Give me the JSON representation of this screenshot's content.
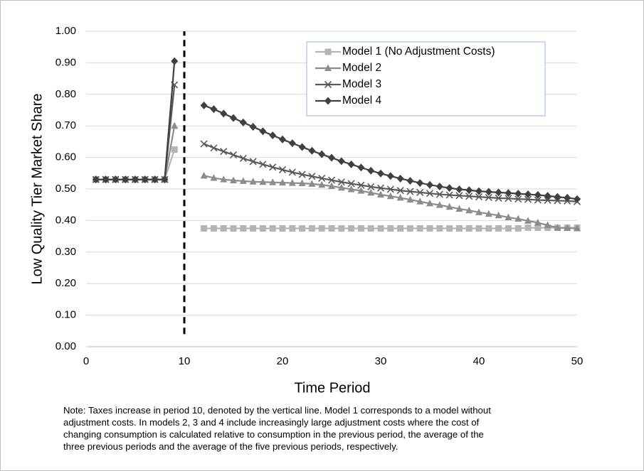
{
  "chart_data": {
    "type": "line",
    "xlabel": "Time Period",
    "ylabel": "Low Quality Tier  Market Share",
    "x": [
      1,
      2,
      3,
      4,
      5,
      6,
      7,
      8,
      9,
      10,
      11,
      12,
      13,
      14,
      15,
      16,
      17,
      18,
      19,
      20,
      21,
      22,
      23,
      24,
      25,
      26,
      27,
      28,
      29,
      30,
      31,
      32,
      33,
      34,
      35,
      36,
      37,
      38,
      39,
      40,
      41,
      42,
      43,
      44,
      45,
      46,
      47,
      48,
      49,
      50
    ],
    "series": [
      {
        "name": "Model 1 (No Adjustment Costs)",
        "color": "#b4b4b4",
        "marker": "square",
        "values": [
          0.53,
          0.53,
          0.53,
          0.53,
          0.53,
          0.53,
          0.53,
          0.53,
          0.625,
          null,
          null,
          0.375,
          0.375,
          0.375,
          0.375,
          0.375,
          0.375,
          0.375,
          0.375,
          0.375,
          0.375,
          0.375,
          0.375,
          0.375,
          0.375,
          0.375,
          0.375,
          0.375,
          0.375,
          0.375,
          0.375,
          0.375,
          0.375,
          0.375,
          0.375,
          0.375,
          0.375,
          0.375,
          0.375,
          0.375,
          0.375,
          0.375,
          0.375,
          0.375,
          0.377,
          0.377,
          0.377,
          0.377,
          0.377,
          0.377
        ]
      },
      {
        "name": "Model 2",
        "color": "#8c8c8c",
        "marker": "triangle",
        "values": [
          0.53,
          0.53,
          0.53,
          0.53,
          0.53,
          0.53,
          0.53,
          0.53,
          0.7,
          null,
          null,
          0.542,
          0.535,
          0.53,
          0.527,
          0.525,
          0.523,
          0.522,
          0.521,
          0.52,
          0.519,
          0.518,
          0.516,
          0.513,
          0.509,
          0.504,
          0.499,
          0.494,
          0.488,
          0.482,
          0.477,
          0.472,
          0.466,
          0.46,
          0.454,
          0.449,
          0.443,
          0.437,
          0.432,
          0.426,
          0.421,
          0.416,
          0.41,
          0.405,
          0.399,
          0.393,
          0.385,
          0.377,
          0.376,
          0.375
        ]
      },
      {
        "name": "Model 3",
        "color": "#595959",
        "marker": "x",
        "values": [
          0.53,
          0.53,
          0.53,
          0.53,
          0.53,
          0.53,
          0.53,
          0.53,
          0.83,
          null,
          null,
          0.643,
          0.63,
          0.619,
          0.608,
          0.597,
          0.587,
          0.578,
          0.569,
          0.561,
          0.553,
          0.546,
          0.54,
          0.534,
          0.528,
          0.522,
          0.517,
          0.512,
          0.507,
          0.503,
          0.499,
          0.495,
          0.492,
          0.489,
          0.486,
          0.483,
          0.481,
          0.479,
          0.477,
          0.475,
          0.473,
          0.471,
          0.47,
          0.468,
          0.467,
          0.465,
          0.464,
          0.463,
          0.462,
          0.46
        ]
      },
      {
        "name": "Model 4",
        "color": "#404040",
        "marker": "diamond",
        "values": [
          0.53,
          0.53,
          0.53,
          0.53,
          0.53,
          0.53,
          0.53,
          0.53,
          0.905,
          null,
          null,
          0.765,
          0.753,
          0.739,
          0.725,
          0.711,
          0.697,
          0.683,
          0.67,
          0.657,
          0.645,
          0.633,
          0.621,
          0.61,
          0.599,
          0.588,
          0.578,
          0.568,
          0.558,
          0.549,
          0.541,
          0.533,
          0.526,
          0.519,
          0.513,
          0.508,
          0.503,
          0.499,
          0.496,
          0.493,
          0.491,
          0.489,
          0.487,
          0.485,
          0.483,
          0.481,
          0.478,
          0.475,
          0.472,
          0.468
        ]
      }
    ],
    "xlim": [
      0,
      50
    ],
    "xticks": [
      0,
      10,
      20,
      30,
      40,
      50
    ],
    "ylim": [
      0,
      1
    ],
    "yticks": [
      {
        "value": 0,
        "label": "0.00"
      },
      {
        "value": 0.1,
        "label": "0.10"
      },
      {
        "value": 0.2,
        "label": "0.20"
      },
      {
        "value": 0.3,
        "label": "0.30"
      },
      {
        "value": 0.4,
        "label": "0.40"
      },
      {
        "value": 0.5,
        "label": "0.50"
      },
      {
        "value": 0.6,
        "label": "0.60"
      },
      {
        "value": 0.7,
        "label": "0.70"
      },
      {
        "value": 0.8,
        "label": "0.80"
      },
      {
        "value": 0.9,
        "label": "0.90"
      },
      {
        "value": 1,
        "label": "1.00"
      }
    ],
    "vline_x": 10,
    "grid": true,
    "legend": "top-right",
    "note": [
      "Note: Taxes increase in period 10, denoted by the vertical line. Model 1 corresponds to a model without",
      "adjustment costs.  In models 2, 3 and 4 include increasingly large adjustment costs where the cost of",
      "changing consumption is calculated relative to consumption in the previous period, the average of the",
      "three previous periods and the average of the five previous periods, respectively."
    ]
  }
}
